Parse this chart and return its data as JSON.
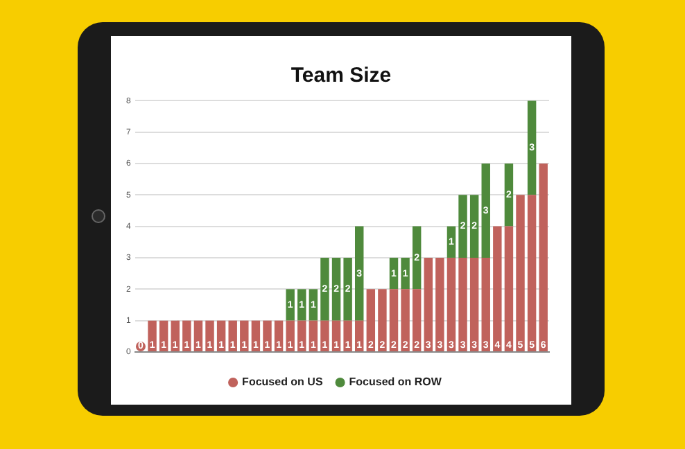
{
  "chart_data": {
    "type": "bar",
    "title": "Team Size",
    "stacked": true,
    "data_labels": true,
    "grid": "y",
    "legend": "bottom",
    "categories": [
      null,
      null,
      null,
      null,
      null,
      null,
      null,
      null,
      null,
      null,
      null,
      null,
      null,
      null,
      null,
      null,
      null,
      null,
      null,
      null,
      null,
      null,
      null,
      null,
      null,
      null,
      null,
      null,
      null,
      null,
      null,
      null,
      null,
      null,
      null,
      null
    ],
    "ylim": [
      0,
      8
    ],
    "yticks": [
      0,
      1,
      2,
      3,
      4,
      5,
      6,
      7,
      8
    ],
    "series": [
      {
        "name": "Focused on US",
        "color": "#c0625c",
        "values": [
          0,
          1,
          1,
          1,
          1,
          1,
          1,
          1,
          1,
          1,
          1,
          1,
          1,
          1,
          1,
          1,
          1,
          1,
          1,
          1,
          2,
          2,
          2,
          2,
          2,
          3,
          3,
          3,
          3,
          3,
          3,
          4,
          4,
          5,
          5,
          6
        ]
      },
      {
        "name": "Focused on ROW",
        "color": "#4f8a3c",
        "values": [
          null,
          null,
          null,
          null,
          null,
          null,
          null,
          null,
          null,
          null,
          null,
          null,
          null,
          1,
          1,
          1,
          2,
          2,
          2,
          3,
          null,
          null,
          1,
          1,
          2,
          null,
          null,
          1,
          2,
          2,
          3,
          null,
          2,
          null,
          3,
          null
        ]
      }
    ]
  }
}
